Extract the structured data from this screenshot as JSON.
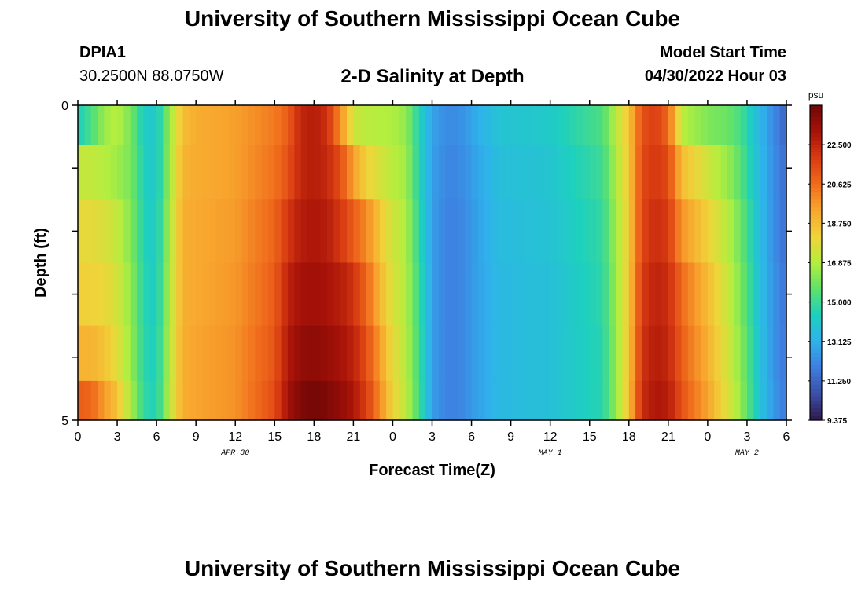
{
  "header": {
    "title": "University of Southern Mississippi Ocean Cube",
    "station_id": "DPIA1",
    "station_coords": "30.2500N  88.0750W",
    "plot_title": "2-D Salinity at Depth",
    "start_label": "Model Start Time",
    "start_value": "04/30/2022 Hour 03"
  },
  "footer": {
    "title": "University of Southern Mississippi Ocean Cube"
  },
  "chart_data": {
    "type": "heatmap",
    "title": "2-D Salinity at Depth",
    "xlabel": "Forecast Time(Z)",
    "ylabel": "Depth (ft)",
    "x_ticks": [
      "0",
      "3",
      "6",
      "9",
      "12",
      "15",
      "18",
      "21",
      "0",
      "3",
      "6",
      "9",
      "12",
      "15",
      "18",
      "21",
      "0",
      "3",
      "6"
    ],
    "date_labels": [
      {
        "label": "APR 30",
        "at_hour": 12
      },
      {
        "label": "MAY 1",
        "at_hour": 36
      },
      {
        "label": "MAY 2",
        "at_hour": 51
      }
    ],
    "x_range_hours": [
      0,
      54
    ],
    "y_ticks": [
      "0",
      "5"
    ],
    "ylim": [
      0,
      5
    ],
    "colorbar": {
      "unit": "psu",
      "vmin": 9.375,
      "vmax": 24.375,
      "ticks": [
        "22.500",
        "20.625",
        "18.750",
        "16.875",
        "15.000",
        "13.125",
        "11.250",
        "9.375"
      ],
      "colors": [
        "#2e1a4e",
        "#3b4ea6",
        "#3f7ee0",
        "#2fb2ec",
        "#1ed0be",
        "#5fe26a",
        "#b4ee3e",
        "#f0d43a",
        "#f8a62e",
        "#f06c1c",
        "#d83a12",
        "#a81208",
        "#6e0606"
      ]
    },
    "depth_levels_ft": [
      0.25,
      1.0,
      2.0,
      3.0,
      4.0,
      4.75
    ],
    "salinity_profiles": {
      "hours": [
        0,
        1,
        2,
        3,
        4,
        5,
        6,
        7,
        8,
        9,
        12,
        15,
        16,
        17,
        18,
        19,
        20,
        21,
        22,
        23,
        24,
        25,
        26,
        27,
        28,
        29,
        30,
        32,
        36,
        40,
        41,
        42,
        43,
        44,
        45,
        46,
        48,
        49,
        50,
        51,
        52,
        53,
        54
      ],
      "levels": [
        [
          14.3,
          15.2,
          16.5,
          17.0,
          16.0,
          14.2,
          14.0,
          16.5,
          18.7,
          19.2,
          19.5,
          20.3,
          21.0,
          22.5,
          22.8,
          22.2,
          20.0,
          17.4,
          17.0,
          16.9,
          16.8,
          16.4,
          14.5,
          12.8,
          12.2,
          12.2,
          12.8,
          13.8,
          14.1,
          15.3,
          17.0,
          18.5,
          21.3,
          21.8,
          20.8,
          17.0,
          16.1,
          15.9,
          15.6,
          14.6,
          13.3,
          12.2,
          11.2
        ],
        [
          17.2,
          17.2,
          16.9,
          16.6,
          16.0,
          14.4,
          14.0,
          16.6,
          19.0,
          19.2,
          19.5,
          20.5,
          21.3,
          22.5,
          22.8,
          22.4,
          21.4,
          19.5,
          18.2,
          17.6,
          17.0,
          16.6,
          14.6,
          12.7,
          12.1,
          12.1,
          12.6,
          13.6,
          13.9,
          15.0,
          16.8,
          18.4,
          21.5,
          22.0,
          21.5,
          18.8,
          17.4,
          16.8,
          16.1,
          14.8,
          13.4,
          12.3,
          11.4
        ],
        [
          17.9,
          17.9,
          17.6,
          17.2,
          16.2,
          14.5,
          14.1,
          16.8,
          19.1,
          19.3,
          19.6,
          20.8,
          22.0,
          22.8,
          23.0,
          22.8,
          22.0,
          21.0,
          20.0,
          18.5,
          17.4,
          16.8,
          14.8,
          12.7,
          12.0,
          12.0,
          12.5,
          13.5,
          13.8,
          14.8,
          16.6,
          18.3,
          21.6,
          22.3,
          21.9,
          19.8,
          18.2,
          17.4,
          16.5,
          15.1,
          13.5,
          12.3,
          11.5
        ],
        [
          18.2,
          18.2,
          18.0,
          17.5,
          16.4,
          14.6,
          14.2,
          16.9,
          19.1,
          19.3,
          19.7,
          21.0,
          22.6,
          23.2,
          23.3,
          23.1,
          22.8,
          22.1,
          20.8,
          19.0,
          17.6,
          16.9,
          15.0,
          12.7,
          12.0,
          12.0,
          12.5,
          13.4,
          13.7,
          14.7,
          16.5,
          18.4,
          21.9,
          22.6,
          22.3,
          20.7,
          18.8,
          17.8,
          16.8,
          15.3,
          13.6,
          12.4,
          11.6
        ],
        [
          19.0,
          19.0,
          18.6,
          17.8,
          16.5,
          14.7,
          14.3,
          17.0,
          19.2,
          19.4,
          19.8,
          21.2,
          22.9,
          23.6,
          23.7,
          23.5,
          23.2,
          22.6,
          21.4,
          19.6,
          17.9,
          17.0,
          15.1,
          12.7,
          12.0,
          12.0,
          12.5,
          13.4,
          13.7,
          14.6,
          16.4,
          18.5,
          22.1,
          22.8,
          22.5,
          21.0,
          19.1,
          18.0,
          17.0,
          15.5,
          13.7,
          12.4,
          11.7
        ],
        [
          21.0,
          20.8,
          19.6,
          18.6,
          16.8,
          14.8,
          14.4,
          17.1,
          19.2,
          19.4,
          19.8,
          21.4,
          23.2,
          24.0,
          24.2,
          24.0,
          23.6,
          23.0,
          21.8,
          20.0,
          18.1,
          17.1,
          15.2,
          12.7,
          12.0,
          12.0,
          12.5,
          13.4,
          13.7,
          14.6,
          16.4,
          18.6,
          22.3,
          23.0,
          22.8,
          21.3,
          19.4,
          18.2,
          17.2,
          15.6,
          13.8,
          12.5,
          11.8
        ]
      ]
    }
  }
}
